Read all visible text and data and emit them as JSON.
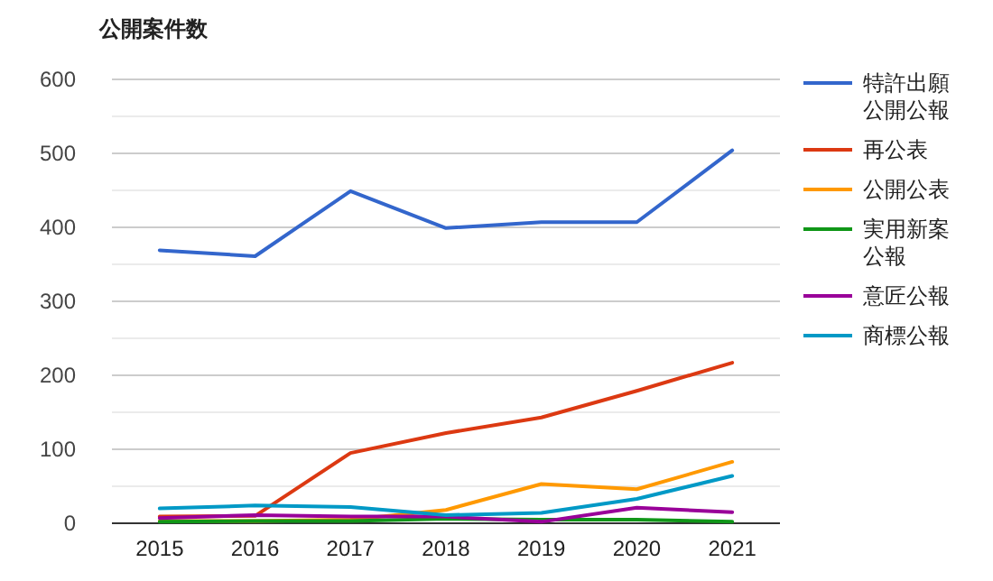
{
  "chart_data": {
    "type": "line",
    "title": "公開案件数",
    "categories": [
      "2015",
      "2016",
      "2017",
      "2018",
      "2019",
      "2020",
      "2021"
    ],
    "series": [
      {
        "name": "特許出願公開公報",
        "color": "#3366cc",
        "values": [
          369,
          361,
          449,
          399,
          407,
          407,
          504
        ]
      },
      {
        "name": "再公表",
        "color": "#dc3912",
        "values": [
          9,
          10,
          95,
          122,
          143,
          179,
          217
        ]
      },
      {
        "name": "公開公表",
        "color": "#ff9900",
        "values": [
          3,
          3,
          5,
          18,
          53,
          46,
          83
        ]
      },
      {
        "name": "実用新案公報",
        "color": "#109618",
        "values": [
          2,
          3,
          3,
          6,
          5,
          5,
          2
        ]
      },
      {
        "name": "意匠公報",
        "color": "#990099",
        "values": [
          7,
          11,
          9,
          9,
          2,
          21,
          15
        ]
      },
      {
        "name": "商標公報",
        "color": "#0099c6",
        "values": [
          20,
          24,
          22,
          11,
          14,
          33,
          64
        ]
      }
    ],
    "ylim": [
      0,
      600
    ],
    "yticks": [
      0,
      100,
      200,
      300,
      400,
      500,
      600
    ],
    "grid": "y",
    "legend": "right",
    "marker": "none",
    "line_style": "solid"
  }
}
